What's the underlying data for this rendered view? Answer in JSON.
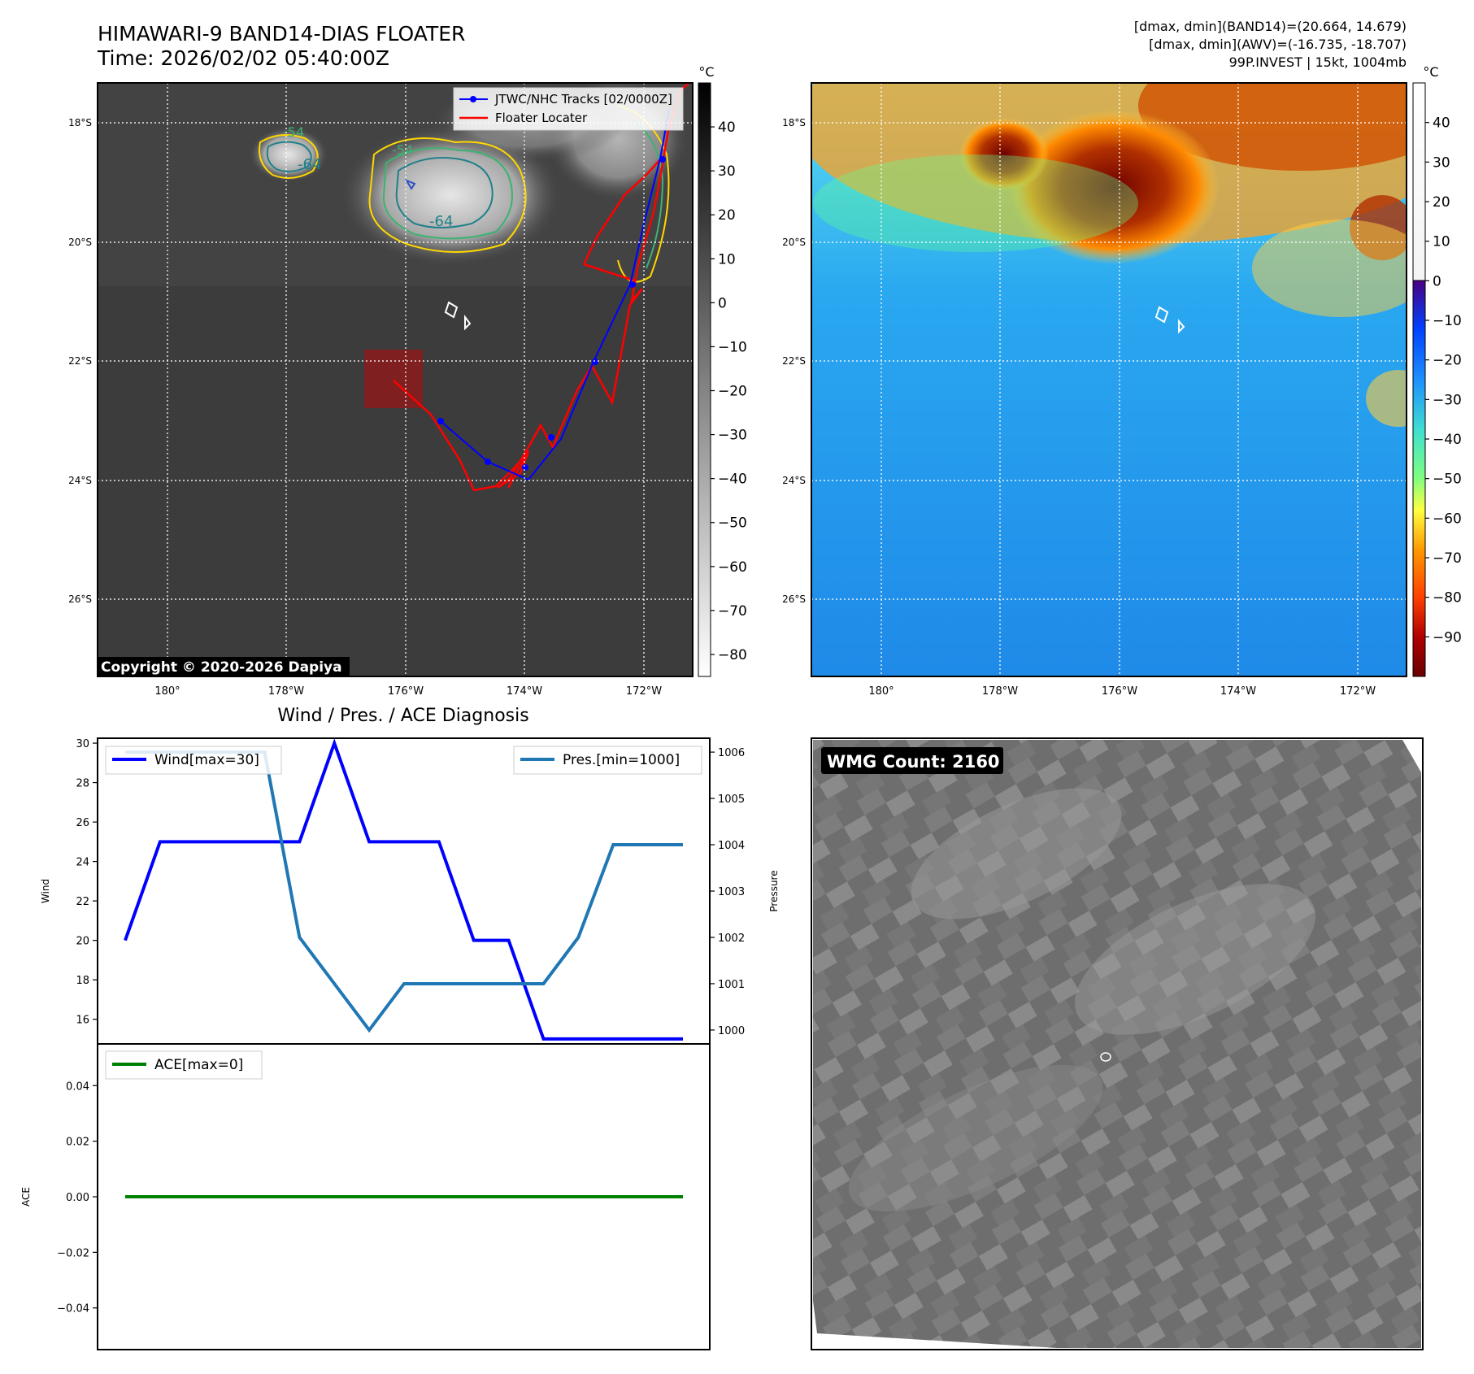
{
  "header": {
    "title_line1": "HIMAWARI-9 BAND14-DIAS FLOATER",
    "title_line2": "Time: 2026/02/02 05:40:00Z",
    "stats_line1": "[dmax, dmin](BAND14)=(20.664, 14.679)",
    "stats_line2": "[dmax, dmin](AWV)=(-16.735, -18.707)",
    "stats_line3": "99P.INVEST | 15kt, 1004mb"
  },
  "map": {
    "lat_labels": [
      "18°S",
      "20°S",
      "22°S",
      "24°S",
      "26°S"
    ],
    "lon_labels": [
      "180°",
      "178°W",
      "176°W",
      "174°W",
      "172°W"
    ],
    "copyright": "Copyright © 2020-2026 Dapiya",
    "legend_tracks": "JTWC/NHC Tracks [02/0000Z]",
    "legend_locater": "Floater Locater",
    "contour_labels": [
      "-64",
      "-64",
      "-54",
      "-54"
    ],
    "colors": {
      "track": "#0000ff",
      "locater": "#ff0000",
      "locater_box": "#8b1a1a"
    }
  },
  "colorbar_left": {
    "unit": "°C",
    "ticks": [
      "40",
      "30",
      "20",
      "10",
      "0",
      "−10",
      "−20",
      "−30",
      "−40",
      "−50",
      "−60",
      "−70",
      "−80"
    ]
  },
  "colorbar_right": {
    "unit": "°C",
    "ticks": [
      "40",
      "30",
      "20",
      "10",
      "0",
      "−10",
      "−20",
      "−30",
      "−40",
      "−50",
      "−60",
      "−70",
      "−80",
      "−90"
    ]
  },
  "diag": {
    "title": "Wind / Pres. / ACE Diagnosis",
    "wind_axis_label": "Wind",
    "pres_axis_label": "Pressure",
    "ace_axis_label": "ACE",
    "wind_ticks": [
      "30",
      "28",
      "26",
      "24",
      "22",
      "20",
      "18",
      "16"
    ],
    "pres_ticks": [
      "1006",
      "1005",
      "1004",
      "1003",
      "1002",
      "1001",
      "1000"
    ],
    "ace_ticks": [
      "0.04",
      "0.02",
      "0.00",
      "−0.02",
      "−0.04"
    ],
    "legend_wind": "Wind[max=30]",
    "legend_pres": "Pres.[min=1000]",
    "legend_ace": "ACE[max=0]",
    "colors": {
      "wind": "#0000ff",
      "pres": "#1f77b4",
      "ace": "#008000"
    }
  },
  "wmg": {
    "label": "WMG Count: 2160"
  },
  "chart_data": [
    {
      "type": "line",
      "title": "Wind / Pres. / ACE Diagnosis",
      "ylabel": "Wind",
      "series": [
        {
          "name": "Wind[max=30]",
          "values": [
            20,
            25,
            25,
            25,
            25,
            25,
            30,
            25,
            25,
            25,
            20,
            20,
            15,
            15,
            15,
            15,
            15
          ]
        }
      ],
      "ylim": [
        14.75,
        30.25
      ],
      "grid": false,
      "legend": "upper-left"
    },
    {
      "type": "line",
      "ylabel": "Pressure",
      "series": [
        {
          "name": "Pres.[min=1000]",
          "values": [
            1006,
            1006,
            1006,
            1006,
            1006,
            1002,
            1001,
            1000,
            1001,
            1001,
            1001,
            1001,
            1001,
            1002,
            1004,
            1004,
            1004
          ]
        }
      ],
      "ylim": [
        999.7,
        1006.3
      ],
      "grid": false,
      "legend": "upper-right"
    },
    {
      "type": "line",
      "ylabel": "ACE",
      "series": [
        {
          "name": "ACE[max=0]",
          "values": [
            0,
            0,
            0,
            0,
            0,
            0,
            0,
            0,
            0,
            0,
            0,
            0,
            0,
            0,
            0,
            0,
            0
          ]
        }
      ],
      "ylim": [
        -0.055,
        0.055
      ],
      "grid": false,
      "legend": "upper-left"
    }
  ]
}
